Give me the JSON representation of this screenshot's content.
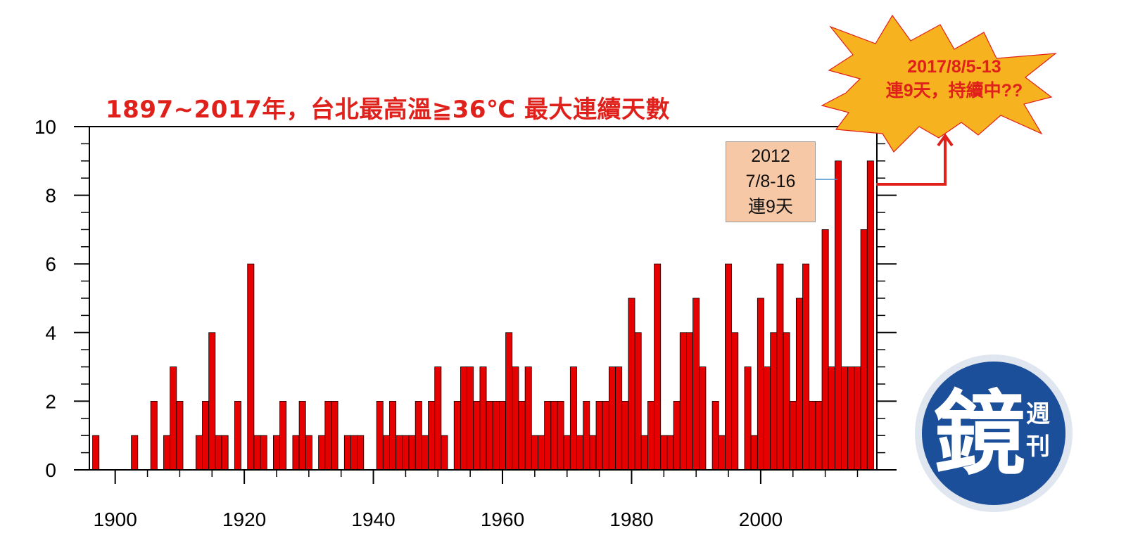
{
  "chart_data": {
    "type": "bar",
    "title": "1897~2017年，台北最高溫≧36℃ 最大連續天數",
    "xlabel": "",
    "ylabel": "",
    "xlim": [
      1896,
      2018
    ],
    "ylim": [
      0,
      10
    ],
    "x_ticks": [
      1900,
      1920,
      1940,
      1960,
      1980,
      2000
    ],
    "y_ticks": [
      0,
      2,
      4,
      6,
      8,
      10
    ],
    "grid": false,
    "bar_color": "#e60000",
    "x": [
      1897,
      1903,
      1906,
      1908,
      1909,
      1910,
      1913,
      1914,
      1915,
      1916,
      1917,
      1919,
      1921,
      1922,
      1923,
      1925,
      1926,
      1928,
      1929,
      1930,
      1932,
      1933,
      1934,
      1936,
      1937,
      1938,
      1941,
      1942,
      1943,
      1944,
      1945,
      1946,
      1947,
      1948,
      1949,
      1950,
      1951,
      1953,
      1954,
      1955,
      1956,
      1957,
      1958,
      1959,
      1960,
      1961,
      1962,
      1963,
      1964,
      1965,
      1966,
      1967,
      1968,
      1969,
      1970,
      1971,
      1972,
      1973,
      1974,
      1975,
      1976,
      1977,
      1978,
      1979,
      1980,
      1981,
      1982,
      1983,
      1984,
      1985,
      1986,
      1987,
      1988,
      1989,
      1990,
      1991,
      1993,
      1994,
      1995,
      1996,
      1998,
      1999,
      2000,
      2001,
      2002,
      2003,
      2004,
      2005,
      2006,
      2007,
      2008,
      2009,
      2010,
      2011,
      2012,
      2013,
      2014,
      2015,
      2016,
      2017
    ],
    "values": [
      1,
      1,
      2,
      1,
      3,
      2,
      1,
      2,
      4,
      1,
      1,
      2,
      6,
      1,
      1,
      1,
      2,
      1,
      2,
      1,
      1,
      2,
      2,
      1,
      1,
      1,
      2,
      1,
      2,
      1,
      1,
      1,
      2,
      1,
      2,
      3,
      1,
      2,
      3,
      3,
      2,
      3,
      2,
      2,
      2,
      4,
      3,
      2,
      3,
      1,
      1,
      2,
      2,
      2,
      1,
      3,
      1,
      2,
      1,
      2,
      2,
      3,
      3,
      2,
      5,
      4,
      1,
      2,
      6,
      1,
      1,
      2,
      4,
      4,
      5,
      3,
      2,
      1,
      6,
      4,
      3,
      1,
      5,
      3,
      4,
      6,
      4,
      2,
      5,
      6,
      2,
      2,
      7,
      3,
      9,
      3,
      3,
      3,
      7,
      9
    ]
  },
  "annotations": {
    "box_2012": {
      "year": "2012",
      "dates": "7/8-16",
      "text": "連9天"
    },
    "burst_2017": {
      "dates": "2017/8/5-13",
      "text": "連9天，持續中??"
    }
  },
  "watermark": {
    "name": "鏡週刊",
    "char_main": "鏡",
    "char_small_1": "週",
    "char_small_2": "刊",
    "color": "#1c4f9a"
  },
  "colors": {
    "title": "#e0201b",
    "bar": "#e60000",
    "box_fill": "#f6c8a6",
    "burst_fill": "#f6b21f",
    "arrow": "#e0201b"
  }
}
